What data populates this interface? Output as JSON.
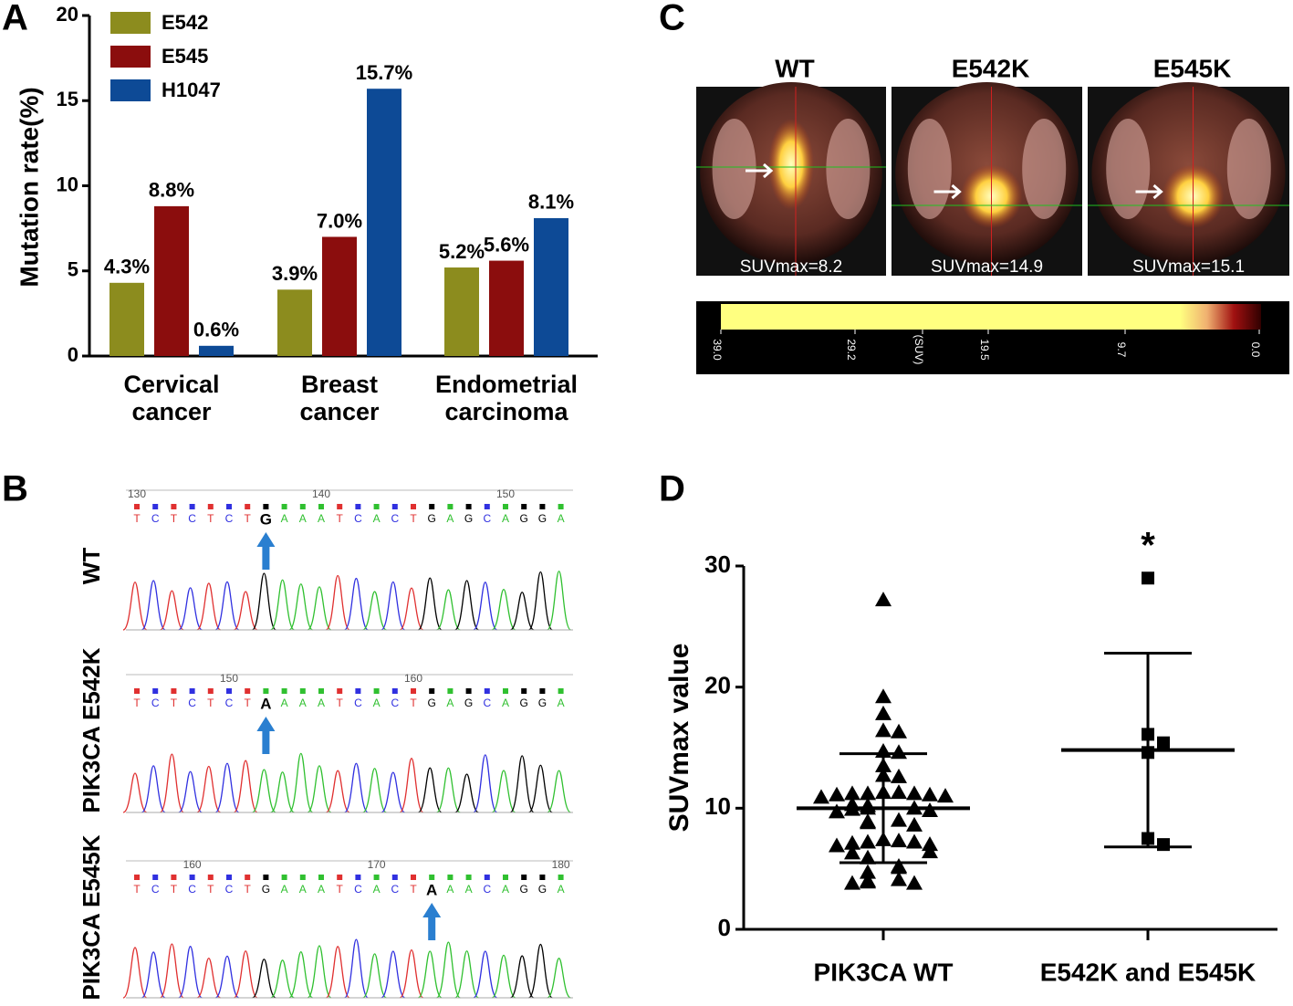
{
  "panel_labels": [
    "A",
    "B",
    "C",
    "D"
  ],
  "chart_data": [
    {
      "type": "bar",
      "ylabel": "Mutation rate(%)",
      "categories": [
        [
          "Cervical",
          "cancer"
        ],
        [
          "Breast",
          "cancer"
        ],
        [
          "Endometrial",
          "carcinoma"
        ]
      ],
      "series": [
        {
          "name": "E542",
          "color": "#8c8c1e",
          "values": [
            4.3,
            3.9,
            5.2
          ],
          "value_labels": [
            "4.3%",
            "3.9%",
            "5.2%"
          ]
        },
        {
          "name": "E545",
          "color": "#8b0d0d",
          "values": [
            8.8,
            7.0,
            5.6
          ],
          "value_labels": [
            "8.8%",
            "7.0%",
            "5.6%"
          ]
        },
        {
          "name": "H1047",
          "color": "#0d4a96",
          "values": [
            0.6,
            15.7,
            8.1
          ],
          "value_labels": [
            "0.6%",
            "15.7%",
            "8.1%"
          ]
        }
      ],
      "ylim": [
        0,
        20
      ],
      "yticks": [
        0,
        5,
        10,
        15,
        20
      ],
      "legend": "upper left"
    },
    {
      "type": "scatter",
      "ylabel": "SUVmax value",
      "categories": [
        "PIK3CA WT",
        "E542K and E545K"
      ],
      "groups": [
        {
          "marker": "triangle",
          "values": [
            27.2,
            19.2,
            17.8,
            16.4,
            16.3,
            14.7,
            14.6,
            13.5,
            12.7,
            12.6,
            11.3,
            11.3,
            11.2,
            11.2,
            11.2,
            11.1,
            11.1,
            11.0,
            10.9,
            10.3,
            10.2,
            10.0,
            10.0,
            9.9,
            9.8,
            9.7,
            9.0,
            8.9,
            8.8,
            8.6,
            7.4,
            7.3,
            7.2,
            7.2,
            7.1,
            7.0,
            6.9,
            6.4,
            6.3,
            5.9,
            5.2,
            5.1,
            4.7,
            4.1,
            4.0,
            3.9,
            3.8,
            3.8
          ]
        },
        {
          "marker": "square",
          "values": [
            29.0,
            16.1,
            15.4,
            14.6,
            7.5,
            7.0
          ]
        }
      ],
      "mean": [
        10.0,
        14.8
      ],
      "sd": [
        4.5,
        8.0
      ],
      "annotation": "*",
      "color": "#000000",
      "ylim": [
        0,
        30
      ],
      "yticks": [
        0,
        10,
        20,
        30
      ]
    }
  ],
  "sequencing": {
    "tracks": [
      {
        "label": "WT",
        "positions": [
          130,
          140,
          150
        ],
        "bases_before": [
          "T",
          "C",
          "T",
          "C",
          "T",
          "C",
          "T"
        ],
        "call": "G",
        "bases_after": [
          "A",
          "A",
          "A",
          "T",
          "C",
          "A",
          "C",
          "T",
          "G",
          "A",
          "G",
          "C",
          "A",
          "G",
          "G",
          "A"
        ]
      },
      {
        "label": "PIK3CA E542K",
        "positions": [
          150,
          160
        ],
        "bases_before": [
          "T",
          "C",
          "T",
          "C",
          "T",
          "C",
          "T"
        ],
        "call": "A",
        "bases_after": [
          "A",
          "A",
          "A",
          "T",
          "C",
          "A",
          "C",
          "T",
          "G",
          "A",
          "G",
          "C",
          "A",
          "G",
          "G",
          "A"
        ]
      },
      {
        "label": "PIK3CA E545K",
        "positions": [
          160,
          170,
          180
        ],
        "bases_before": [
          "T",
          "C",
          "T",
          "C",
          "T",
          "C",
          "T",
          "G",
          "A",
          "A",
          "A",
          "T",
          "C",
          "A",
          "C",
          "T"
        ],
        "call": "A",
        "bases_after": [
          "A",
          "A",
          "C",
          "A",
          "G",
          "G",
          "A"
        ]
      }
    ]
  },
  "pet": {
    "images": [
      {
        "title": "WT",
        "suv": "SUVmax=8.2"
      },
      {
        "title": "E542K",
        "suv": "SUVmax=14.9"
      },
      {
        "title": "E545K",
        "suv": "SUVmax=15.1"
      }
    ],
    "colorbar_labels": [
      "39.0",
      "29.2",
      "(SUV)",
      "19.5",
      "9.7",
      "0.0"
    ]
  }
}
